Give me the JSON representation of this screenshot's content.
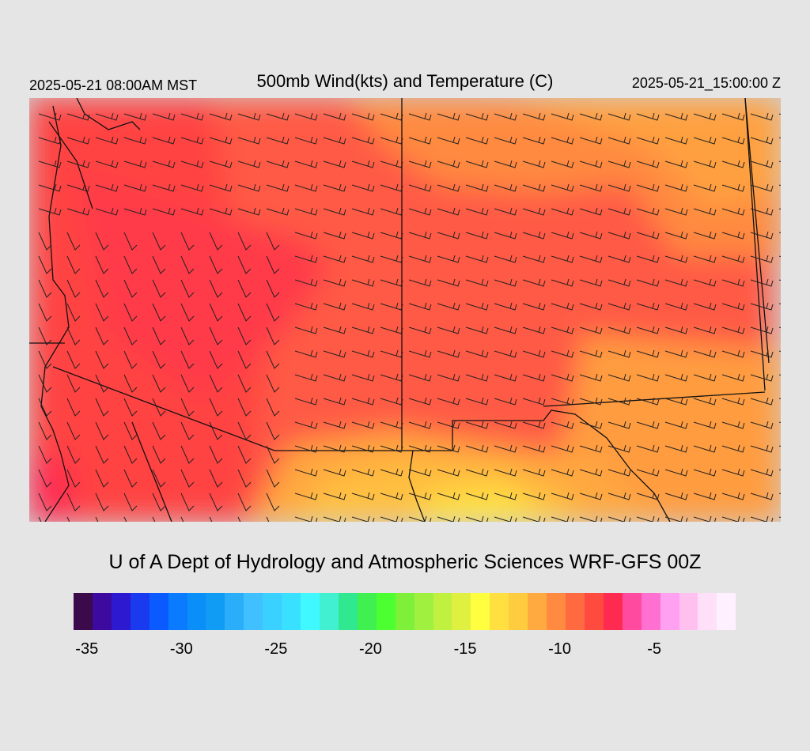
{
  "header": {
    "local_time": "2025-05-21 08:00AM MST",
    "title": "500mb Wind(kts) and Temperature (C)",
    "valid_time": "2025-05-21_15:00:00 Z"
  },
  "credit": "U of A Dept of Hydrology and Atmospheric Sciences WRF-GFS 00Z",
  "colorbar": {
    "colors": [
      "#3a0a4a",
      "#3d0aa0",
      "#2d1ad0",
      "#1a3af0",
      "#0a5aff",
      "#0a7aff",
      "#0a8ef8",
      "#109cf5",
      "#2aaefa",
      "#40c0ff",
      "#3ad0ff",
      "#3ae0ff",
      "#40f8ff",
      "#40f0d0",
      "#30e890",
      "#40f050",
      "#4cff30",
      "#7ef03a",
      "#a0f040",
      "#c0f040",
      "#e0f040",
      "#ffff40",
      "#ffe040",
      "#ffcc40",
      "#ffaa40",
      "#ff8a40",
      "#ff6a40",
      "#ff4a40",
      "#ff2a50",
      "#ff4aa0",
      "#ff70d0",
      "#ffa0f0",
      "#ffc0f0",
      "#ffe0f8",
      "#fff0ff"
    ],
    "ticks": [
      "-35",
      "-30",
      "-25",
      "-20",
      "-15",
      "-10",
      "-5"
    ]
  }
}
